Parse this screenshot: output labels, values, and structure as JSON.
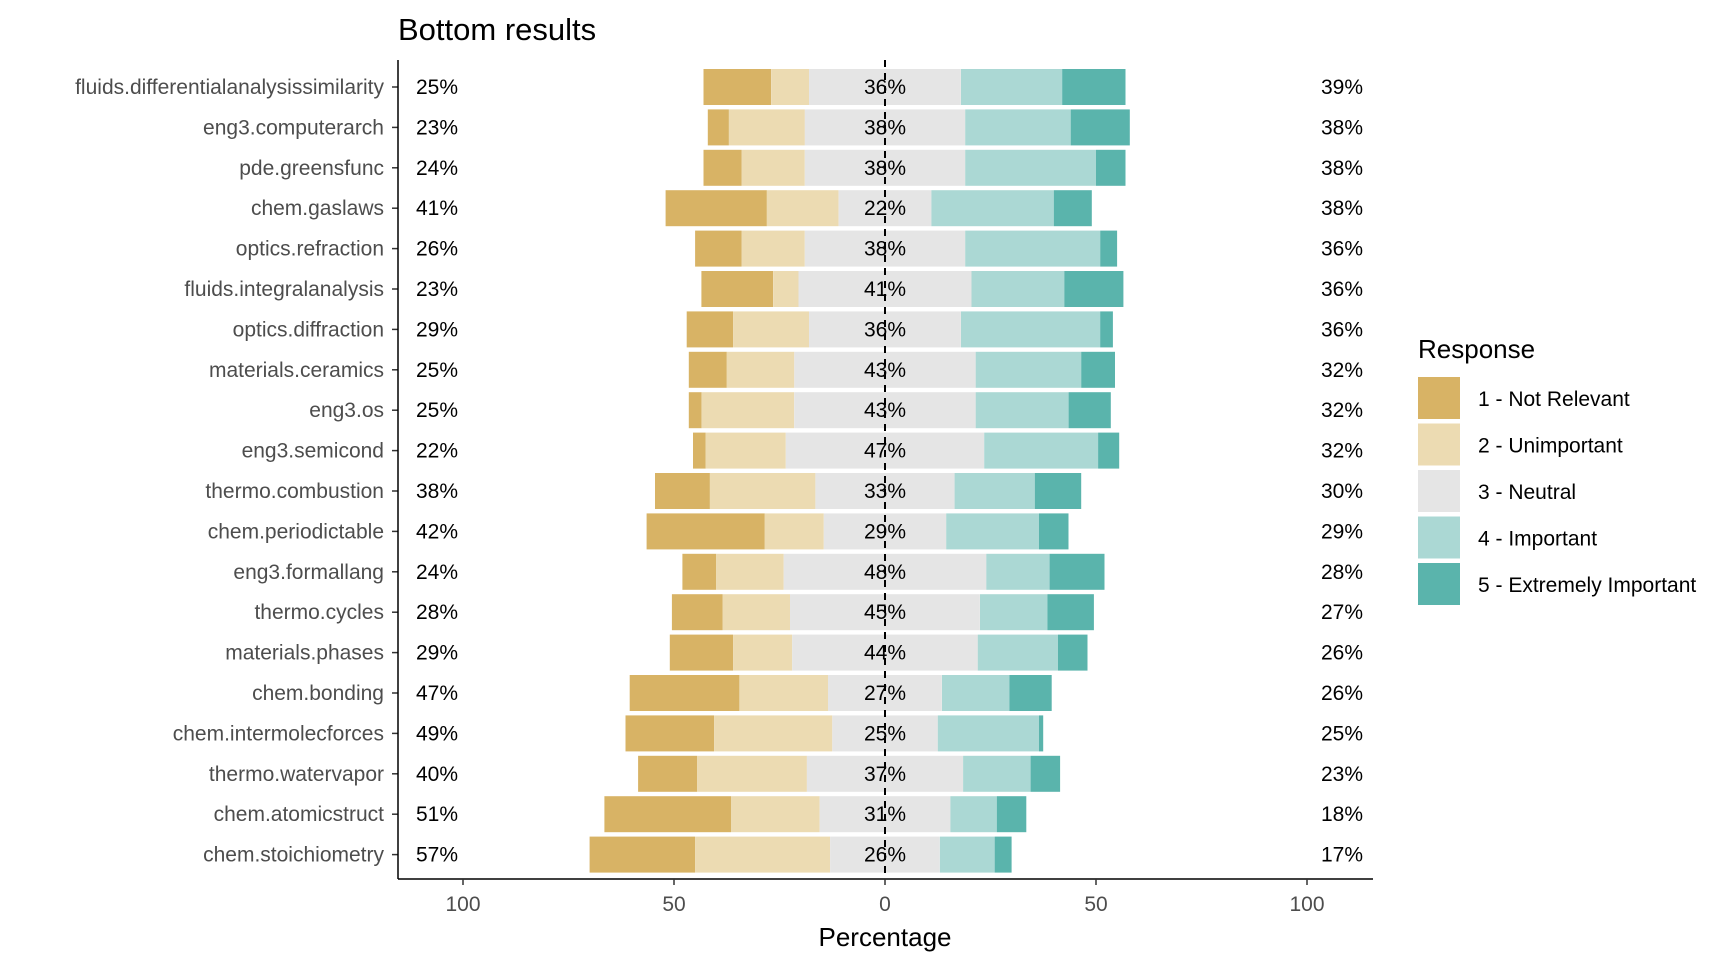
{
  "chart_data": {
    "type": "bar",
    "orientation": "horizontal-diverging-stacked",
    "title": "Bottom results",
    "xlabel": "Percentage",
    "ylabel": "",
    "xlim": [
      -100,
      100
    ],
    "x_ticks": [
      -100,
      -50,
      0,
      50,
      100
    ],
    "x_tick_labels": [
      "100",
      "50",
      "0",
      "50",
      "100"
    ],
    "grid": false,
    "legend": {
      "title": "Response",
      "position": "right",
      "entries": [
        {
          "name": "1 - Not Relevant",
          "color": "#d8b365"
        },
        {
          "name": "2 - Unimportant",
          "color": "#ecdbb2"
        },
        {
          "name": "3 - Neutral",
          "color": "#e5e5e5"
        },
        {
          "name": "4 - Important",
          "color": "#abd8d4"
        },
        {
          "name": "5 - Extremely Important",
          "color": "#5ab4ac"
        }
      ]
    },
    "categories": [
      "fluids.differentialanalysissimilarity",
      "eng3.computerarch",
      "pde.greensfunc",
      "chem.gaslaws",
      "optics.refraction",
      "fluids.integralanalysis",
      "optics.diffraction",
      "materials.ceramics",
      "eng3.os",
      "eng3.semicond",
      "thermo.combustion",
      "chem.periodictable",
      "eng3.formallang",
      "thermo.cycles",
      "materials.phases",
      "chem.bonding",
      "chem.intermolecforces",
      "thermo.watervapor",
      "chem.atomicstruct",
      "chem.stoichiometry"
    ],
    "series": [
      {
        "name": "1 - Not Relevant",
        "values": [
          16,
          5,
          9,
          24,
          11,
          17,
          11,
          9,
          3,
          3,
          13,
          28,
          8,
          12,
          15,
          26,
          21,
          14,
          30,
          25
        ]
      },
      {
        "name": "2 - Unimportant",
        "values": [
          9,
          18,
          15,
          17,
          15,
          6,
          18,
          16,
          22,
          19,
          25,
          14,
          16,
          16,
          14,
          21,
          28,
          26,
          21,
          32
        ]
      },
      {
        "name": "3 - Neutral",
        "values": [
          36,
          38,
          38,
          22,
          38,
          41,
          36,
          43,
          43,
          47,
          33,
          29,
          48,
          45,
          44,
          27,
          25,
          37,
          31,
          26
        ]
      },
      {
        "name": "4 - Important",
        "values": [
          24,
          25,
          31,
          29,
          32,
          22,
          33,
          25,
          22,
          27,
          19,
          22,
          15,
          16,
          19,
          16,
          24,
          16,
          11,
          13
        ]
      },
      {
        "name": "5 - Extremely Important",
        "values": [
          15,
          14,
          7,
          9,
          4,
          14,
          3,
          8,
          10,
          5,
          11,
          7,
          13,
          11,
          7,
          10,
          1,
          7,
          7,
          4
        ]
      }
    ],
    "left_labels": [
      "25%",
      "23%",
      "24%",
      "41%",
      "26%",
      "23%",
      "29%",
      "25%",
      "25%",
      "22%",
      "38%",
      "42%",
      "24%",
      "28%",
      "29%",
      "47%",
      "49%",
      "40%",
      "51%",
      "57%"
    ],
    "center_labels": [
      "36%",
      "38%",
      "38%",
      "22%",
      "38%",
      "41%",
      "36%",
      "43%",
      "43%",
      "47%",
      "33%",
      "29%",
      "48%",
      "45%",
      "44%",
      "27%",
      "25%",
      "37%",
      "31%",
      "26%"
    ],
    "right_labels": [
      "39%",
      "38%",
      "38%",
      "38%",
      "36%",
      "36%",
      "36%",
      "32%",
      "32%",
      "32%",
      "30%",
      "29%",
      "28%",
      "27%",
      "26%",
      "26%",
      "25%",
      "23%",
      "18%",
      "17%"
    ]
  }
}
